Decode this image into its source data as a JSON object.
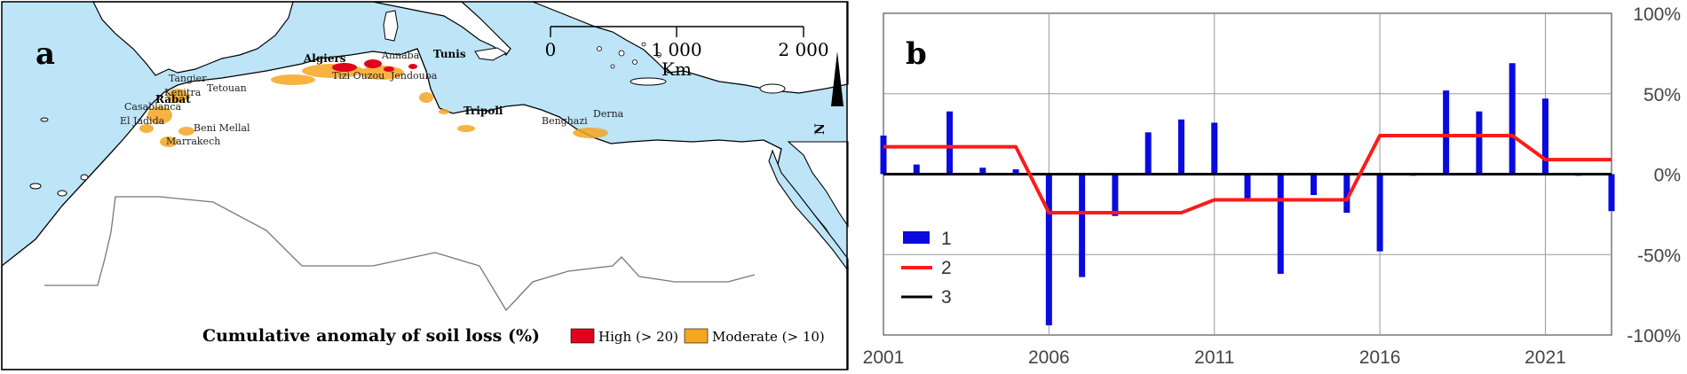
{
  "map": {
    "panel_label": "a",
    "scale_labels": [
      "0",
      "1 000",
      "2 000"
    ],
    "scale_unit": "Km",
    "north_label": "N",
    "cities_bold": [
      "Algiers",
      "Tunis",
      "Rabat",
      "Tripoli"
    ],
    "cities": [
      "Annaba",
      "Tizi Ouzou",
      "Jendouba",
      "Tangier",
      "Tetouan",
      "Kenitra",
      "Casablanca",
      "El Jadida",
      "Beni Mellal",
      "Marrakech",
      "Benghazi",
      "Derna"
    ],
    "legend_title": "Cumulative anomaly of soil loss (%)",
    "legend_items": [
      {
        "label": "High (> 20)",
        "color": "#e3001b"
      },
      {
        "label": "Moderate (> 10)",
        "color": "#f5a623"
      }
    ],
    "sea_color": "#bde4f7",
    "land_color": "#ffffff"
  },
  "chart_data": {
    "panel_label": "b",
    "type": "bar",
    "x": [
      2001,
      2002,
      2003,
      2004,
      2005,
      2006,
      2007,
      2008,
      2009,
      2010,
      2011,
      2012,
      2013,
      2014,
      2015,
      2016,
      2017,
      2018,
      2019,
      2020,
      2021,
      2022,
      2023
    ],
    "x_ticks": [
      "2001",
      "2006",
      "2011",
      "2016",
      "2021"
    ],
    "y_ticks": [
      "100%",
      "50%",
      "0%",
      "-50%",
      "-100%"
    ],
    "ylim": [
      -100,
      100
    ],
    "grid": true,
    "legend_position": "left",
    "series": [
      {
        "name": "1",
        "kind": "bar",
        "color": "#0a0adf",
        "values": [
          24,
          6,
          39,
          4,
          3,
          -94,
          -64,
          -26,
          26,
          34,
          32,
          -15,
          -62,
          -13,
          -24,
          -48,
          -1,
          52,
          39,
          69,
          47,
          -1,
          -23
        ]
      },
      {
        "name": "2",
        "kind": "line",
        "color": "#ff1a1a",
        "values": [
          17,
          17,
          17,
          17,
          17,
          -24,
          -24,
          -24,
          -24,
          -24,
          -16,
          -16,
          -16,
          -16,
          -16,
          24,
          24,
          24,
          24,
          24,
          9,
          9,
          9
        ]
      },
      {
        "name": "3",
        "kind": "line",
        "color": "#000000",
        "values": [
          0,
          0,
          0,
          0,
          0,
          0,
          0,
          0,
          0,
          0,
          0,
          0,
          0,
          0,
          0,
          0,
          0,
          0,
          0,
          0,
          0,
          0,
          0
        ]
      }
    ]
  }
}
